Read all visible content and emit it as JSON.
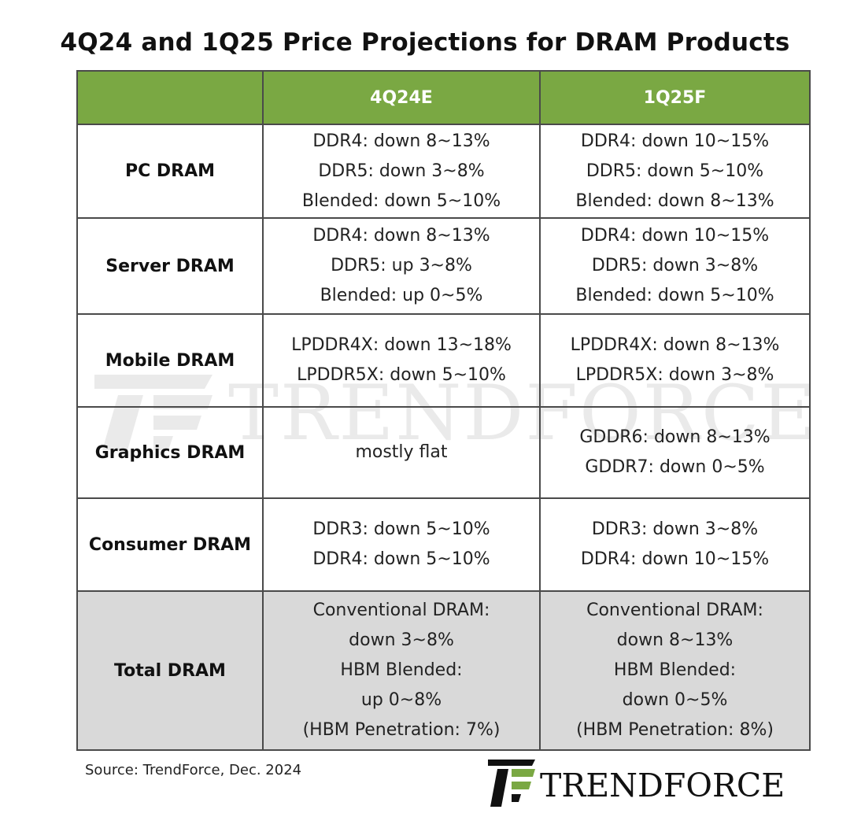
{
  "title": "4Q24 and 1Q25 Price Projections  for DRAM Products",
  "watermark_text": "TRENDFORCE",
  "source": "Source: TrendForce, Dec. 2024",
  "logo_text": "TRENDFORCE",
  "colors": {
    "header_bg": "#7aa843",
    "header_text": "#ffffff",
    "total_row_bg": "#d9d9d9",
    "border": "#4a4a4a",
    "logo_green": "#7aa843"
  },
  "chart_data": {
    "type": "table",
    "title": "4Q24 and 1Q25 Price Projections  for DRAM Products",
    "columns": [
      "",
      "4Q24E",
      "1Q25F"
    ],
    "rows": [
      {
        "label": "PC DRAM",
        "q4": [
          "DDR4: down  8~13%",
          "DDR5: down  3~8%",
          "Blended: down  5~10%"
        ],
        "q1": [
          "DDR4: down  10~15%",
          "DDR5: down  5~10%",
          "Blended: down  8~13%"
        ]
      },
      {
        "label": "Server DRAM",
        "q4": [
          "DDR4: down  8~13%",
          "DDR5: up  3~8%",
          "Blended: up  0~5%"
        ],
        "q1": [
          "DDR4: down  10~15%",
          "DDR5: down  3~8%",
          "Blended: down  5~10%"
        ]
      },
      {
        "label": "Mobile DRAM",
        "q4": [
          "LPDDR4X: down  13~18%",
          "LPDDR5X: down  5~10%"
        ],
        "q1": [
          "LPDDR4X: down  8~13%",
          "LPDDR5X: down  3~8%"
        ]
      },
      {
        "label": "Graphics DRAM",
        "q4": [
          "mostly flat"
        ],
        "q1": [
          "GDDR6: down  8~13%",
          "GDDR7: down  0~5%"
        ]
      },
      {
        "label": "Consumer DRAM",
        "q4": [
          "DDR3: down  5~10%",
          "DDR4: down  5~10%"
        ],
        "q1": [
          "DDR3: down  3~8%",
          "DDR4: down  10~15%"
        ]
      },
      {
        "label": "Total DRAM",
        "q4": [
          "Conventional DRAM:",
          "down  3~8%",
          "HBM Blended:",
          "up  0~8%",
          "(HBM Penetration:  7%)"
        ],
        "q1": [
          "Conventional DRAM:",
          "down  8~13%",
          "HBM Blended:",
          "down  0~5%",
          "(HBM Penetration:  8%)"
        ]
      }
    ]
  }
}
